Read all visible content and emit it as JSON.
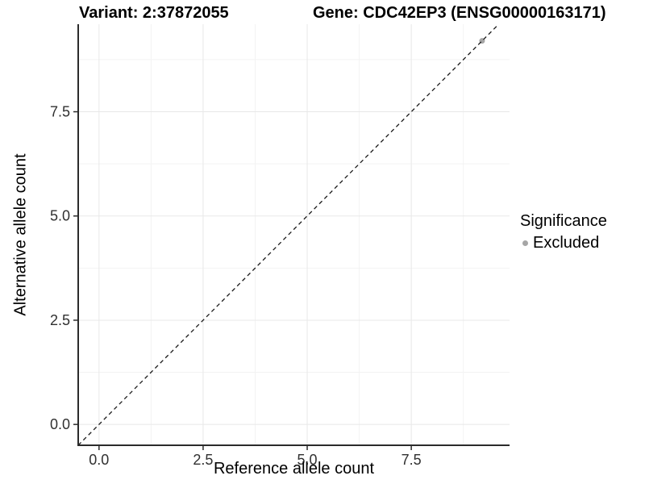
{
  "chart_data": {
    "type": "scatter",
    "title_left": "Variant: 2:37872055",
    "title_right": "Gene: CDC42EP3 (ENSG00000163171)",
    "xlabel": "Reference allele count",
    "ylabel": "Alternative allele count",
    "xlim": [
      -0.5,
      9.86
    ],
    "ylim": [
      -0.5,
      9.6
    ],
    "x_ticks": {
      "values": [
        0,
        2.5,
        5,
        7.5
      ],
      "labels": [
        "0.0",
        "2.5",
        "5.0",
        "7.5"
      ]
    },
    "y_ticks": {
      "values": [
        0,
        2.5,
        5,
        7.5
      ],
      "labels": [
        "0.0",
        "2.5",
        "5.0",
        "7.5"
      ]
    },
    "minor_gridlines": [
      1.25,
      3.75,
      6.25,
      8.75
    ],
    "grid": "major and minor gridlines, no top/right border",
    "reference_line": {
      "type": "identity y=x",
      "style": "dashed",
      "color": "#1a1a1a"
    },
    "series": [
      {
        "name": "Excluded",
        "marker": "circle",
        "color": "#a6a6a6",
        "points": [
          [
            9.2,
            9.2
          ]
        ]
      }
    ],
    "legend": {
      "title": "Significance",
      "position": "right",
      "items": [
        {
          "label": "Excluded",
          "color": "#a6a6a6"
        }
      ]
    },
    "colors": {
      "axis_line": "#2b2b2b",
      "major_grid": "#e8e8e8",
      "minor_grid": "#f3f3f3",
      "tick_label": "#303030",
      "background": "#ffffff"
    }
  }
}
